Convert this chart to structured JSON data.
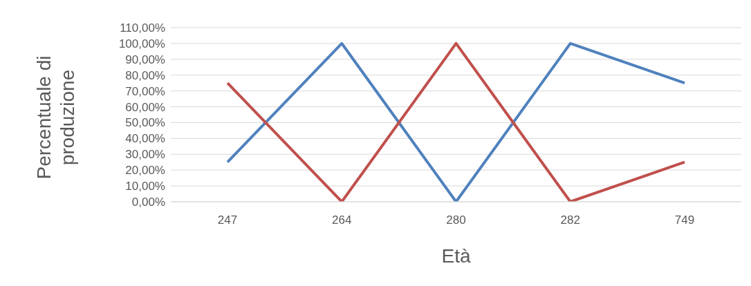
{
  "chart_data": {
    "type": "line",
    "xlabel": "Età",
    "ylabel": "Percentuale di produzione",
    "categories": [
      "247",
      "264",
      "280",
      "282",
      "749"
    ],
    "series": [
      {
        "color": "#4f81bd",
        "values": [
          25,
          100,
          0,
          100,
          75
        ]
      },
      {
        "color": "#c0504d",
        "values": [
          75,
          0,
          100,
          0,
          25
        ]
      }
    ],
    "ylim": [
      0,
      110
    ],
    "yticks": [
      {
        "value": 0,
        "label": "0,00%"
      },
      {
        "value": 10,
        "label": "10,00%"
      },
      {
        "value": 20,
        "label": "20,00%"
      },
      {
        "value": 30,
        "label": "30,00%"
      },
      {
        "value": 40,
        "label": "40,00%"
      },
      {
        "value": 50,
        "label": "50,00%"
      },
      {
        "value": 60,
        "label": "60,00%"
      },
      {
        "value": 70,
        "label": "70,00%"
      },
      {
        "value": 80,
        "label": "80,00%"
      },
      {
        "value": 90,
        "label": "90,00%"
      },
      {
        "value": 100,
        "label": "100,00%"
      },
      {
        "value": 110,
        "label": "110,00%"
      }
    ],
    "grid": "y",
    "marker": "none",
    "line_style": "solid",
    "legend": false
  }
}
